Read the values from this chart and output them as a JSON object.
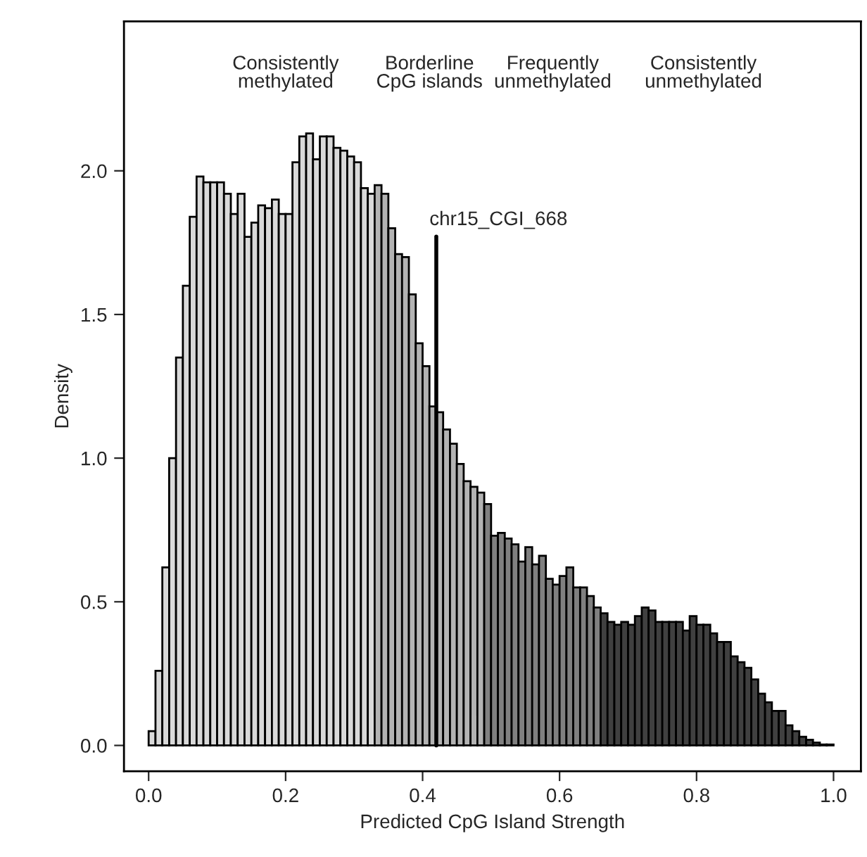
{
  "chart_data": {
    "type": "histogram",
    "xlabel": "Predicted CpG Island Strength",
    "ylabel": "Density",
    "bins": [
      0.0,
      0.01,
      0.02,
      0.03,
      0.04,
      0.05,
      0.06,
      0.07,
      0.08,
      0.09,
      0.1,
      0.11,
      0.12,
      0.13,
      0.14,
      0.15,
      0.16,
      0.17,
      0.18,
      0.19,
      0.2,
      0.21,
      0.22,
      0.23,
      0.24,
      0.25,
      0.26,
      0.27,
      0.28,
      0.29,
      0.3,
      0.31,
      0.32,
      0.33,
      0.34,
      0.35,
      0.36,
      0.37,
      0.38,
      0.39,
      0.4,
      0.41,
      0.42,
      0.43,
      0.44,
      0.45,
      0.46,
      0.47,
      0.48,
      0.49,
      0.5,
      0.51,
      0.52,
      0.53,
      0.54,
      0.55,
      0.56,
      0.57,
      0.58,
      0.59,
      0.6,
      0.61,
      0.62,
      0.63,
      0.64,
      0.65,
      0.66,
      0.67,
      0.68,
      0.69,
      0.7,
      0.71,
      0.72,
      0.73,
      0.74,
      0.75,
      0.76,
      0.77,
      0.78,
      0.79,
      0.8,
      0.81,
      0.82,
      0.83,
      0.84,
      0.85,
      0.86,
      0.87,
      0.88,
      0.89,
      0.9,
      0.91,
      0.92,
      0.93,
      0.94,
      0.95,
      0.96,
      0.97,
      0.98,
      0.99,
      1.0
    ],
    "values": [
      0.05,
      0.26,
      0.62,
      1.0,
      1.35,
      1.6,
      1.84,
      1.98,
      1.96,
      1.96,
      1.96,
      1.92,
      1.85,
      1.92,
      1.77,
      1.82,
      1.88,
      1.87,
      1.9,
      1.85,
      1.85,
      2.03,
      2.12,
      2.13,
      2.04,
      2.12,
      2.12,
      2.08,
      2.07,
      2.05,
      2.03,
      1.94,
      1.92,
      1.95,
      1.92,
      1.8,
      1.71,
      1.7,
      1.57,
      1.4,
      1.32,
      1.18,
      1.16,
      1.1,
      1.05,
      0.98,
      0.92,
      0.9,
      0.88,
      0.84,
      0.73,
      0.74,
      0.72,
      0.7,
      0.64,
      0.69,
      0.63,
      0.66,
      0.58,
      0.56,
      0.59,
      0.62,
      0.55,
      0.55,
      0.52,
      0.48,
      0.46,
      0.43,
      0.42,
      0.43,
      0.42,
      0.45,
      0.48,
      0.47,
      0.43,
      0.43,
      0.43,
      0.43,
      0.4,
      0.45,
      0.42,
      0.42,
      0.39,
      0.36,
      0.36,
      0.31,
      0.29,
      0.27,
      0.23,
      0.18,
      0.15,
      0.12,
      0.12,
      0.07,
      0.05,
      0.03,
      0.02,
      0.01,
      0.003,
      0.003
    ],
    "colors": [
      "#d9d9d9",
      "#d9d9d9",
      "#d9d9d9",
      "#d9d9d9",
      "#d9d9d9",
      "#d9d9d9",
      "#d9d9d9",
      "#d9d9d9",
      "#d9d9d9",
      "#d9d9d9",
      "#d9d9d9",
      "#d9d9d9",
      "#d9d9d9",
      "#d9d9d9",
      "#d9d9d9",
      "#d9d9d9",
      "#d9d9d9",
      "#d9d9d9",
      "#d9d9d9",
      "#d9d9d9",
      "#d9d9d9",
      "#d9d9d9",
      "#d9d9d9",
      "#d9d9d9",
      "#d9d9d9",
      "#d9d9d9",
      "#d9d9d9",
      "#d9d9d9",
      "#d9d9d9",
      "#d9d9d9",
      "#d9d9d9",
      "#d9d9d9",
      "#d9d9d9",
      "#b3b3b3",
      "#b3b3b3",
      "#b3b3b3",
      "#b3b3b3",
      "#b3b3b3",
      "#b3b3b3",
      "#b3b3b3",
      "#b3b3b3",
      "#b3b3b3",
      "#b3b3b3",
      "#b3b3b3",
      "#b3b3b3",
      "#b3b3b3",
      "#b3b3b3",
      "#b3b3b3",
      "#b3b3b3",
      "#808080",
      "#808080",
      "#808080",
      "#808080",
      "#808080",
      "#808080",
      "#808080",
      "#808080",
      "#808080",
      "#808080",
      "#808080",
      "#808080",
      "#808080",
      "#808080",
      "#808080",
      "#808080",
      "#808080",
      "#404040",
      "#404040",
      "#404040",
      "#404040",
      "#404040",
      "#404040",
      "#404040",
      "#404040",
      "#404040",
      "#404040",
      "#404040",
      "#404040",
      "#404040",
      "#404040",
      "#404040",
      "#404040",
      "#404040",
      "#404040",
      "#404040",
      "#404040",
      "#404040",
      "#404040",
      "#404040",
      "#404040",
      "#404040",
      "#404040",
      "#404040",
      "#404040",
      "#404040",
      "#404040",
      "#404040",
      "#404040",
      "#404040",
      "#404040"
    ],
    "xlim": [
      -0.036,
      1.04
    ],
    "ylim": [
      -0.09,
      2.52
    ],
    "xticks": [
      {
        "value": 0,
        "label": "0.0"
      },
      0.2,
      0.4,
      0.6,
      0.8,
      {
        "value": 1,
        "label": "1.0"
      }
    ],
    "yticks": [
      {
        "value": 0,
        "label": "0.0"
      },
      0.5,
      {
        "value": 1,
        "label": "1.0"
      },
      1.5,
      {
        "value": 2,
        "label": "2.0"
      }
    ],
    "grid": false,
    "ref_lines": [
      {
        "axis": "x",
        "value": 0.42,
        "label": "chr15_CGI_668",
        "color": "#000000"
      }
    ],
    "annotations": [
      "Consistently\nmethylated",
      "Borderline\nCpG islands",
      "Frequently\nunmethylated",
      "Consistently\nunmethylated"
    ]
  }
}
